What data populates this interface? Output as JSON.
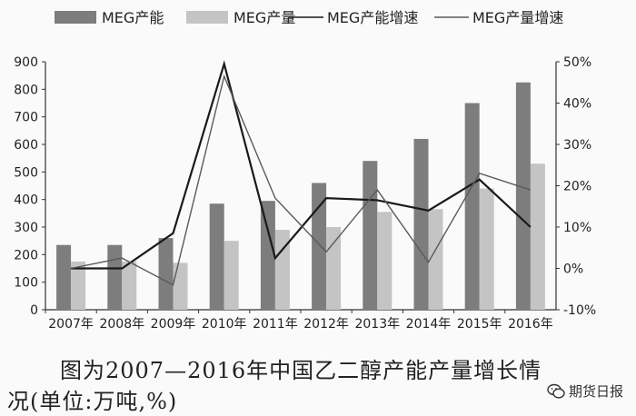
{
  "chart_data": {
    "type": "bar",
    "categories": [
      "2007年",
      "2008年",
      "2009年",
      "2010年",
      "2011年",
      "2012年",
      "2013年",
      "2014年",
      "2015年",
      "2016年"
    ],
    "series": [
      {
        "name": "MEG产能",
        "type": "bar",
        "axis": "left",
        "color": "#7d7d7d",
        "values": [
          235,
          235,
          260,
          385,
          395,
          460,
          540,
          620,
          750,
          825
        ]
      },
      {
        "name": "MEG产量",
        "type": "bar",
        "axis": "left",
        "color": "#c4c4c4",
        "values": [
          175,
          175,
          170,
          250,
          290,
          300,
          355,
          365,
          440,
          530
        ]
      },
      {
        "name": "MEG产能增速",
        "type": "line",
        "axis": "right",
        "color": "#1a1a1a",
        "values": [
          0,
          0,
          8.5,
          49.5,
          2.5,
          17,
          16.5,
          14,
          21.5,
          10
        ]
      },
      {
        "name": "MEG产量增速",
        "type": "line",
        "axis": "right",
        "color": "#5a5a5a",
        "values": [
          0,
          2.5,
          -4,
          46.5,
          17,
          4,
          19,
          1.5,
          23,
          19
        ]
      }
    ],
    "y_left": {
      "ticks": [
        "0",
        "100",
        "200",
        "300",
        "400",
        "500",
        "600",
        "700",
        "800",
        "900"
      ],
      "range": [
        0,
        900
      ]
    },
    "y_right": {
      "ticks": [
        "-10%",
        "0%",
        "10%",
        "20%",
        "30%",
        "40%",
        "50%"
      ],
      "range": [
        -10,
        50
      ]
    },
    "legend_position": "top",
    "grid": false
  },
  "caption": {
    "line1": "图为2007—2016年中国乙二醇产能产量增长情",
    "line2": "况(单位:万吨,%)"
  },
  "watermark": {
    "text": "期货日报",
    "icon": "wechat-icon"
  }
}
